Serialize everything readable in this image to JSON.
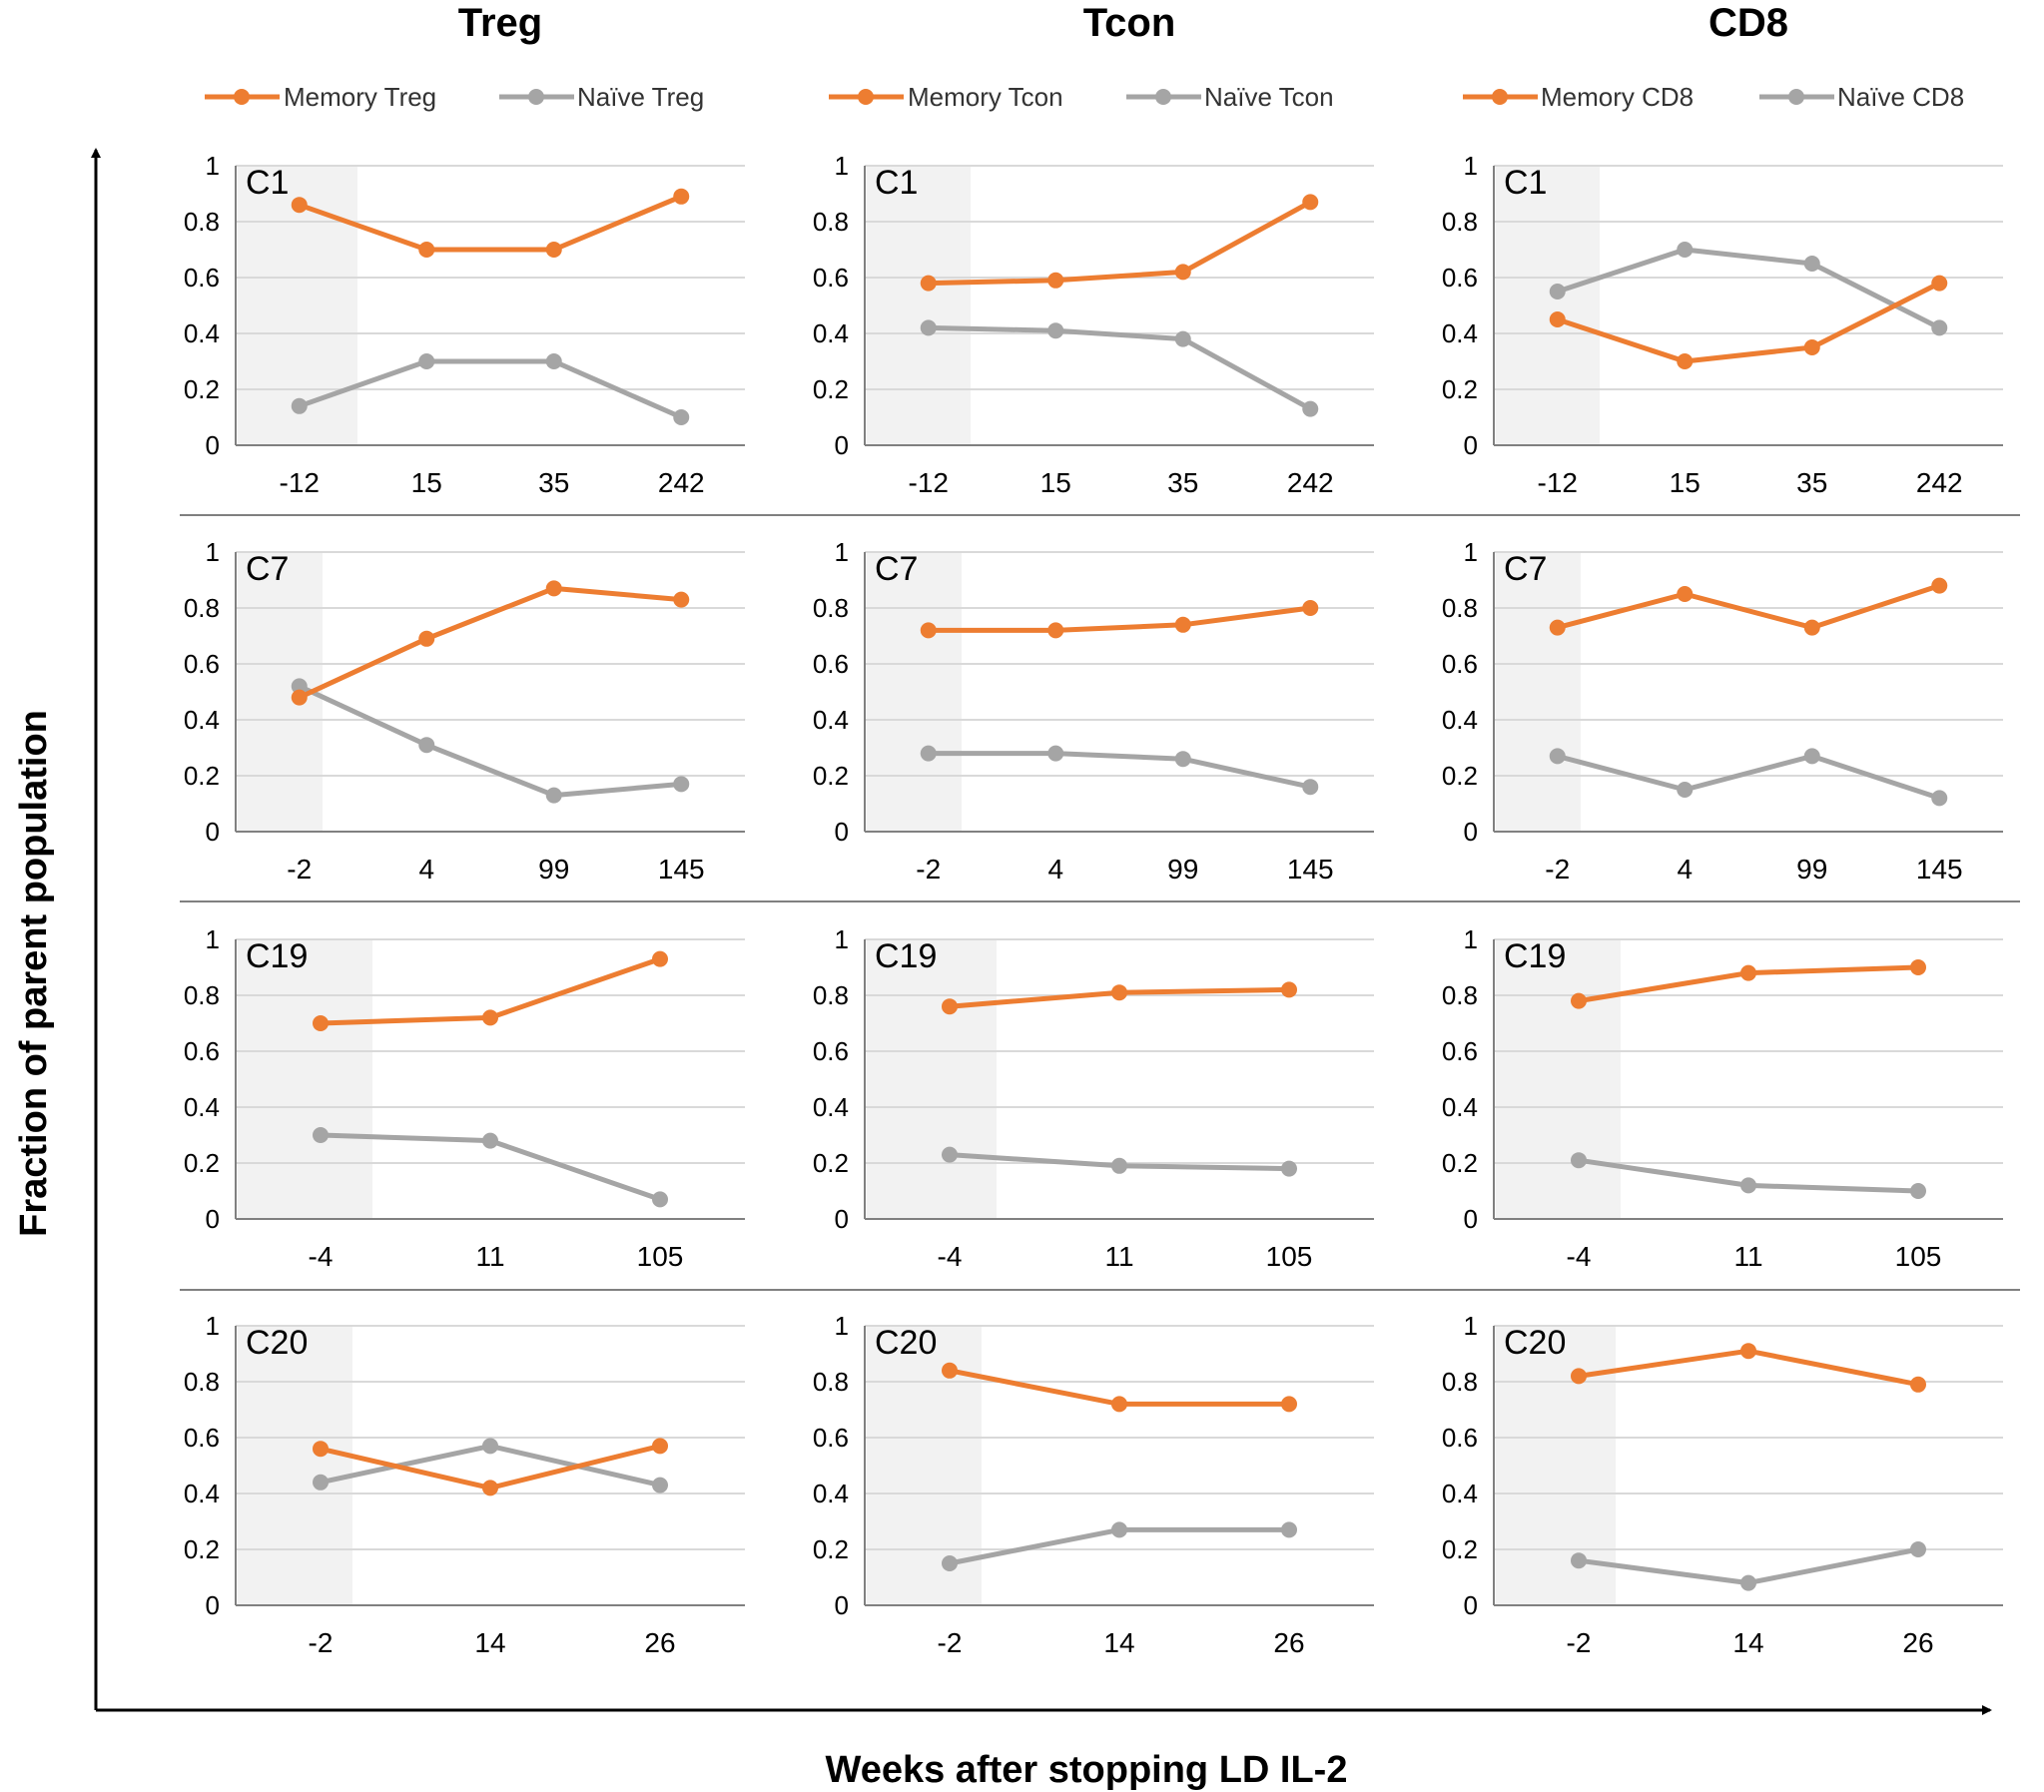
{
  "figure": {
    "y_axis_label": "Fraction of parent population",
    "x_axis_label": "Weeks after stopping LD IL-2"
  },
  "colors": {
    "memory": "#ED7D31",
    "naive": "#A5A5A5",
    "shade": "#F2F2F2",
    "grid": "#D9D9D9",
    "axis": "#000000"
  },
  "columns": [
    {
      "title": "Treg",
      "legend": [
        "Memory Treg",
        "Naïve Treg"
      ]
    },
    {
      "title": "Tcon",
      "legend": [
        "Memory Tcon",
        "Naïve Tcon"
      ]
    },
    {
      "title": "CD8",
      "legend": [
        "Memory CD8",
        "Naïve CD8"
      ]
    }
  ],
  "y_ticks": [
    "0",
    "0.2",
    "0.4",
    "0.6",
    "0.8",
    "1"
  ],
  "chart_data": [
    {
      "type": "line",
      "title": "C1",
      "population": "Treg",
      "categories": [
        "-12",
        "15",
        "35",
        "242"
      ],
      "ylim": [
        0,
        1
      ],
      "series": [
        {
          "name": "Memory Treg",
          "values": [
            0.86,
            0.7,
            0.7,
            0.89
          ]
        },
        {
          "name": "Naïve Treg",
          "values": [
            0.14,
            0.3,
            0.3,
            0.1
          ]
        }
      ]
    },
    {
      "type": "line",
      "title": "C1",
      "population": "Tcon",
      "categories": [
        "-12",
        "15",
        "35",
        "242"
      ],
      "ylim": [
        0,
        1
      ],
      "series": [
        {
          "name": "Memory Tcon",
          "values": [
            0.58,
            0.59,
            0.62,
            0.87
          ]
        },
        {
          "name": "Naïve Tcon",
          "values": [
            0.42,
            0.41,
            0.38,
            0.13
          ]
        }
      ]
    },
    {
      "type": "line",
      "title": "C1",
      "population": "CD8",
      "categories": [
        "-12",
        "15",
        "35",
        "242"
      ],
      "ylim": [
        0,
        1
      ],
      "series": [
        {
          "name": "Memory CD8",
          "values": [
            0.45,
            0.3,
            0.35,
            0.58
          ]
        },
        {
          "name": "Naïve CD8",
          "values": [
            0.55,
            0.7,
            0.65,
            0.42
          ]
        }
      ]
    },
    {
      "type": "line",
      "title": "C7",
      "population": "Treg",
      "categories": [
        "-2",
        "4",
        "99",
        "145"
      ],
      "ylim": [
        0,
        1
      ],
      "series": [
        {
          "name": "Memory Treg",
          "values": [
            0.48,
            0.69,
            0.87,
            0.83
          ]
        },
        {
          "name": "Naïve Treg",
          "values": [
            0.52,
            0.31,
            0.13,
            0.17
          ]
        }
      ]
    },
    {
      "type": "line",
      "title": "C7",
      "population": "Tcon",
      "categories": [
        "-2",
        "4",
        "99",
        "145"
      ],
      "ylim": [
        0,
        1
      ],
      "series": [
        {
          "name": "Memory Tcon",
          "values": [
            0.72,
            0.72,
            0.74,
            0.8
          ]
        },
        {
          "name": "Naïve Tcon",
          "values": [
            0.28,
            0.28,
            0.26,
            0.16
          ]
        }
      ]
    },
    {
      "type": "line",
      "title": "C7",
      "population": "CD8",
      "categories": [
        "-2",
        "4",
        "99",
        "145"
      ],
      "ylim": [
        0,
        1
      ],
      "series": [
        {
          "name": "Memory CD8",
          "values": [
            0.73,
            0.85,
            0.73,
            0.88
          ]
        },
        {
          "name": "Naïve CD8",
          "values": [
            0.27,
            0.15,
            0.27,
            0.12
          ]
        }
      ]
    },
    {
      "type": "line",
      "title": "C19",
      "population": "Treg",
      "categories": [
        "-4",
        "11",
        "105"
      ],
      "ylim": [
        0,
        1
      ],
      "series": [
        {
          "name": "Memory Treg",
          "values": [
            0.7,
            0.72,
            0.93
          ]
        },
        {
          "name": "Naïve Treg",
          "values": [
            0.3,
            0.28,
            0.07
          ]
        }
      ]
    },
    {
      "type": "line",
      "title": "C19",
      "population": "Tcon",
      "categories": [
        "-4",
        "11",
        "105"
      ],
      "ylim": [
        0,
        1
      ],
      "series": [
        {
          "name": "Memory Tcon",
          "values": [
            0.76,
            0.81,
            0.82
          ]
        },
        {
          "name": "Naïve Tcon",
          "values": [
            0.23,
            0.19,
            0.18
          ]
        }
      ]
    },
    {
      "type": "line",
      "title": "C19",
      "population": "CD8",
      "categories": [
        "-4",
        "11",
        "105"
      ],
      "ylim": [
        0,
        1
      ],
      "series": [
        {
          "name": "Memory CD8",
          "values": [
            0.78,
            0.88,
            0.9
          ]
        },
        {
          "name": "Naïve CD8",
          "values": [
            0.21,
            0.12,
            0.1
          ]
        }
      ]
    },
    {
      "type": "line",
      "title": "C20",
      "population": "Treg",
      "categories": [
        "-2",
        "14",
        "26"
      ],
      "ylim": [
        0,
        1
      ],
      "series": [
        {
          "name": "Memory Treg",
          "values": [
            0.56,
            0.42,
            0.57
          ]
        },
        {
          "name": "Naïve Treg",
          "values": [
            0.44,
            0.57,
            0.43
          ]
        }
      ]
    },
    {
      "type": "line",
      "title": "C20",
      "population": "Tcon",
      "categories": [
        "-2",
        "14",
        "26"
      ],
      "ylim": [
        0,
        1
      ],
      "series": [
        {
          "name": "Memory Tcon",
          "values": [
            0.84,
            0.72,
            0.72
          ]
        },
        {
          "name": "Naïve Tcon",
          "values": [
            0.15,
            0.27,
            0.27
          ]
        }
      ]
    },
    {
      "type": "line",
      "title": "C20",
      "population": "CD8",
      "categories": [
        "-2",
        "14",
        "26"
      ],
      "ylim": [
        0,
        1
      ],
      "series": [
        {
          "name": "Memory CD8",
          "values": [
            0.82,
            0.91,
            0.79
          ]
        },
        {
          "name": "Naïve CD8",
          "values": [
            0.16,
            0.08,
            0.2
          ]
        }
      ]
    }
  ]
}
